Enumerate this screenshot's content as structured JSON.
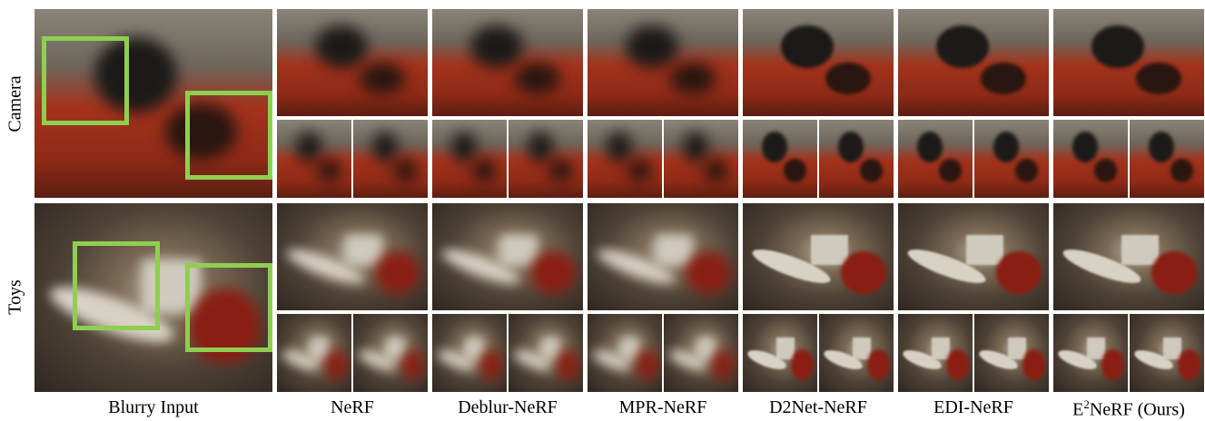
{
  "row_labels": [
    "Camera",
    "Toys"
  ],
  "column_labels": [
    "Blurry Input",
    "NeRF",
    "Deblur-NeRF",
    "MPR-NeRF",
    "D2Net-NeRF",
    "EDI-NeRF"
  ],
  "last_column_label": {
    "base": "E",
    "sup": "2",
    "rest": "NeRF (Ours)"
  }
}
